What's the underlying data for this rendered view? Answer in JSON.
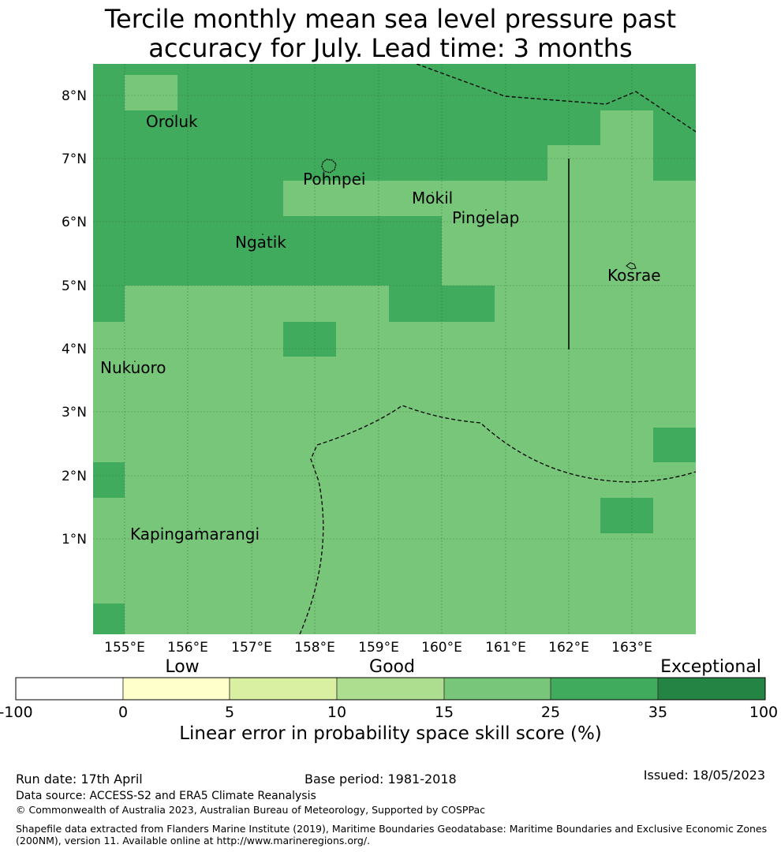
{
  "title": {
    "line1": "Tercile monthly mean sea level pressure past",
    "line2": "accuracy for July. Lead time: 3 months"
  },
  "map": {
    "lat_labels": [
      "8°N",
      "7°N",
      "6°N",
      "5°N",
      "4°N",
      "3°N",
      "2°N",
      "1°N"
    ],
    "lon_labels": [
      "155°E",
      "156°E",
      "157°E",
      "158°E",
      "159°E",
      "160°E",
      "161°E",
      "162°E",
      "163°E"
    ],
    "places": [
      "Oroluk",
      "Pohnpei",
      "Mokil",
      "Pingelap",
      "Ngatik",
      "Kosrae",
      "Nukuoro",
      "Kapingamarangi"
    ],
    "colors": {
      "dark": "#41ab5d",
      "light": "#78c679"
    }
  },
  "colorbar": {
    "category_labels": [
      "Low",
      "Good",
      "Exceptional"
    ],
    "ticks": [
      "-100",
      "0",
      "5",
      "10",
      "15",
      "25",
      "35",
      "100"
    ],
    "colors": [
      "#ffffff",
      "#ffffcc",
      "#d9f0a3",
      "#addd8e",
      "#78c679",
      "#41ab5d",
      "#238443"
    ],
    "label": "Linear error in probability space skill score (%)"
  },
  "footer": {
    "run_date": "Run date: 17th April",
    "base_period": "Base period: 1981-2018",
    "issued": "Issued: 18/05/2023",
    "data_source": "Data source: ACCESS-S2 and ERA5 Climate Reanalysis",
    "copyright": "© Commonwealth of Australia 2023, Australian Bureau of Meteorology, Supported by COSPPac",
    "shapefile_line1": "Shapefile data extracted from Flanders Marine Institute (2019), Maritime Boundaries Geodatabase: Maritime Boundaries and Exclusive Economic Zones",
    "shapefile_line2": "(200NM), version 11. Available online at http://www.marineregions.org/."
  }
}
